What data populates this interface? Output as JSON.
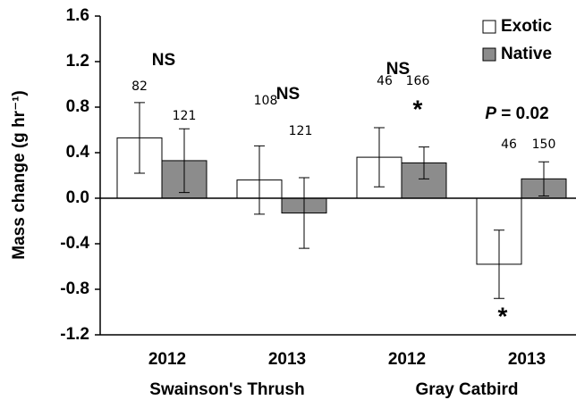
{
  "chart_data": {
    "type": "bar",
    "ylabel": "Mass change (g hr⁻¹)",
    "categories": [
      "2012",
      "2013",
      "2012",
      "2013"
    ],
    "group_labels": [
      "Swainson's Thrush",
      "Gray Catbird"
    ],
    "series": [
      {
        "name": "Exotic",
        "color": "#ffffff",
        "values": [
          0.53,
          0.16,
          0.36,
          -0.58
        ],
        "errors": [
          0.31,
          0.3,
          0.26,
          0.3
        ],
        "n": [
          82,
          108,
          46,
          46
        ]
      },
      {
        "name": "Native",
        "color": "#8c8c8c",
        "values": [
          0.33,
          -0.13,
          0.31,
          0.17
        ],
        "errors": [
          0.28,
          0.31,
          0.14,
          0.15
        ],
        "n": [
          121,
          121,
          166,
          150
        ]
      }
    ],
    "annotations": [
      "NS",
      "NS",
      "NS",
      "*",
      "*"
    ],
    "p_label": {
      "italic": "P",
      "text": " = 0.02"
    },
    "ylim": [
      -1.2,
      1.6
    ],
    "yticks": [
      1.6,
      1.2,
      0.8,
      0.4,
      {
        "value": 0,
        "label": "0.0"
      },
      -0.4,
      -0.8,
      -1.2
    ],
    "legend": "top-right"
  }
}
